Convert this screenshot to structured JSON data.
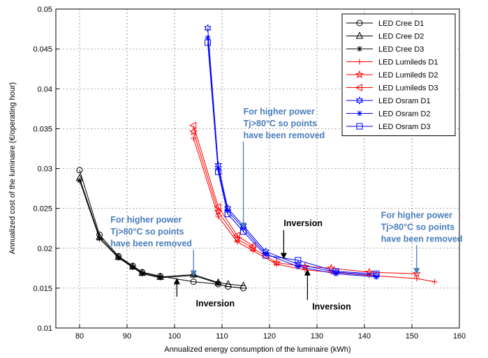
{
  "chart_data": {
    "type": "line",
    "title": "",
    "xlabel": "Annualized energy consumption of the luminaire (kWh)",
    "ylabel": "Annualized cost of the luminaire (€/operating hour)",
    "xlim": [
      75,
      160
    ],
    "ylim": [
      0.01,
      0.05
    ],
    "xticks": [
      "80",
      "90",
      "100",
      "110",
      "120",
      "130",
      "140",
      "150",
      "160"
    ],
    "yticks": [
      "0.01",
      "0.015",
      "0.02",
      "0.025",
      "0.03",
      "0.035",
      "0.04",
      "0.045",
      "0.05"
    ],
    "grid": true,
    "legend_position": "top-right",
    "series": [
      {
        "name": "LED Cree D1",
        "color": "#000000",
        "marker": "circle",
        "x": [
          80,
          84.2,
          88.2,
          91.2,
          93.2,
          97.0,
          104.0,
          109.2,
          111.3,
          114.5
        ],
        "y": [
          0.0298,
          0.0217,
          0.019,
          0.0178,
          0.017,
          0.0165,
          0.0158,
          0.0155,
          0.0152,
          0.015
        ]
      },
      {
        "name": "LED Cree D2",
        "color": "#000000",
        "marker": "triangle",
        "x": [
          80,
          84.2,
          88.2,
          91.2,
          93.2,
          97.0,
          104.0,
          109.2,
          111.3,
          114.5
        ],
        "y": [
          0.0288,
          0.0214,
          0.0189,
          0.0177,
          0.0169,
          0.0164,
          0.0167,
          0.0157,
          0.0155,
          0.0153
        ]
      },
      {
        "name": "LED Cree D3",
        "color": "#000000",
        "marker": "star",
        "x": [
          80,
          84.2,
          88.2,
          91.2,
          93.2,
          97.0,
          104.0,
          109.2
        ],
        "y": [
          0.0285,
          0.0212,
          0.0188,
          0.0176,
          0.0168,
          0.0163,
          0.0166,
          0.0156
        ]
      },
      {
        "name": "LED Lumileds D1",
        "color": "#ff0000",
        "marker": "plus",
        "x": [
          104.0,
          109.2,
          113.2,
          116.5,
          121.5,
          127.5,
          133.0,
          141.0,
          151.0,
          154.8
        ],
        "y": [
          0.0338,
          0.024,
          0.0208,
          0.0197,
          0.018,
          0.0173,
          0.017,
          0.0166,
          0.0162,
          0.0158
        ]
      },
      {
        "name": "LED Lumileds D2",
        "color": "#ff0000",
        "marker": "pentagram",
        "x": [
          104.0,
          109.2,
          113.2,
          116.5,
          121.5,
          127.5,
          133.0,
          141.0,
          151.0
        ],
        "y": [
          0.0346,
          0.0246,
          0.0212,
          0.02,
          0.0182,
          0.0177,
          0.0175,
          0.017,
          0.0168
        ]
      },
      {
        "name": "LED Lumileds D3",
        "color": "#ff0000",
        "marker": "triangle-left",
        "x": [
          104.0,
          109.2,
          113.2,
          116.5
        ],
        "y": [
          0.0354,
          0.0252,
          0.0216,
          0.0203
        ]
      },
      {
        "name": "LED Osram D1",
        "color": "#0000ff",
        "marker": "hexagram",
        "x": [
          107.0,
          109.2,
          111.2,
          114.5,
          119.2,
          126.0,
          134.0,
          142.5
        ],
        "y": [
          0.0476,
          0.0304,
          0.025,
          0.0228,
          0.0196,
          0.018,
          0.017,
          0.0166
        ]
      },
      {
        "name": "LED Osram D2",
        "color": "#0000ff",
        "marker": "asterisk",
        "x": [
          107.0,
          109.2,
          111.2,
          114.5,
          119.2,
          126.0,
          134.0,
          142.5
        ],
        "y": [
          0.0464,
          0.03,
          0.0247,
          0.0225,
          0.0193,
          0.0177,
          0.0168,
          0.0164
        ]
      },
      {
        "name": "LED Osram D3",
        "color": "#0000ff",
        "marker": "square",
        "x": [
          107.0,
          109.2,
          111.2,
          114.5,
          119.2,
          126.0,
          134.0,
          142.5
        ],
        "y": [
          0.0458,
          0.0296,
          0.0243,
          0.0221,
          0.0191,
          0.0185,
          0.0171,
          0.0168
        ]
      }
    ],
    "annotations": [
      {
        "text": [
          "For higher power",
          "Tj>80°C so points",
          "have been removed"
        ],
        "color": "#4a7ebb",
        "at": [
          114.5,
          0.0368
        ],
        "arrow_to": [
          114.5,
          0.0225
        ]
      },
      {
        "text": [
          "For higher power",
          "Tj>80°C so points",
          "have been removed"
        ],
        "color": "#4a7ebb",
        "at": [
          86.5,
          0.0232
        ],
        "arrow_to": [
          104.0,
          0.0165
        ]
      },
      {
        "text": [
          "For higher power",
          "Tj>80°C so points",
          "have been removed"
        ],
        "color": "#4a7ebb",
        "at": [
          143.5,
          0.0238
        ],
        "arrow_to": [
          151.0,
          0.0168
        ]
      },
      {
        "text": [
          "Inversion"
        ],
        "color": "#000000",
        "at": [
          104.5,
          0.0127
        ],
        "arrow_to": [
          100.5,
          0.0162
        ]
      },
      {
        "text": [
          "Inversion"
        ],
        "color": "#000000",
        "at": [
          123.0,
          0.0228
        ],
        "arrow_to": [
          123.0,
          0.0187
        ]
      },
      {
        "text": [
          "Inversion"
        ],
        "color": "#000000",
        "at": [
          129.0,
          0.0123
        ],
        "arrow_to": [
          128.0,
          0.0173
        ]
      }
    ]
  }
}
